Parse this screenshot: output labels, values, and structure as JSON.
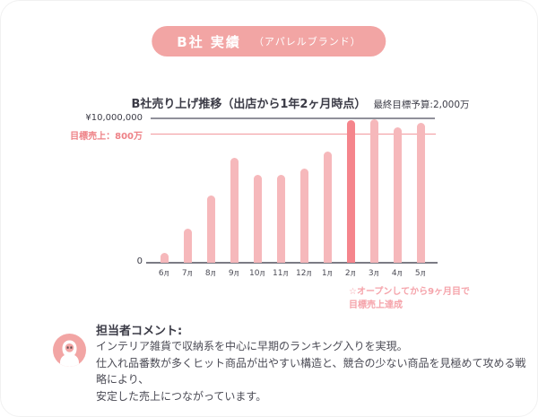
{
  "header": {
    "badge_main": "B社 実績",
    "badge_sub": "（アパレルブランド）"
  },
  "chart_data": {
    "type": "bar",
    "title": "B社売り上げ推移（出店から1年2ヶ月時点）",
    "subtitle": "最終目標予算:2,000万",
    "y_max_label": "¥10,000,000",
    "zero_label": "0",
    "target_label": "目標売上：800万",
    "target_value_man": 800,
    "unit": "万円",
    "ylim_man": [
      0,
      1000
    ],
    "categories": [
      "6月",
      "7月",
      "8月",
      "9月",
      "10月",
      "11月",
      "12月",
      "1月",
      "2月",
      "3月",
      "4月",
      "5月"
    ],
    "values_man": [
      70,
      235,
      465,
      725,
      610,
      610,
      655,
      770,
      985,
      995,
      940,
      970
    ],
    "highlight_index": 8,
    "legend": "none",
    "grid": "top-line-and-target-line-only",
    "annotation": [
      "☆オープンしてから9ヶ月目で",
      "目標売上達成"
    ]
  },
  "comment": {
    "heading": "担当者コメント:",
    "lines": [
      "インテリア雑貨で収納系を中心に早期のランキング入りを実現。",
      "仕入れ品番数が多くヒット商品が出やすい構造と、競合の少ない商品を見極めて攻める戦略により、",
      "安定した売上につながっています。"
    ]
  },
  "icons": {
    "avatar": "hooded-person-icon"
  },
  "colors": {
    "badge_bg": "#F2A5A4",
    "badge_text": "#FFFFFF",
    "bar_light": "#F6B8BB",
    "bar_highlight": "#F5858C",
    "target_line": "#F2999E",
    "target_text": "#EE8287",
    "annotation_text": "#F5A3AA",
    "grid_gray": "#90909A",
    "axis_gray": "#7B7B84",
    "text_dark": "#3B3B46",
    "comment_text": "#4B4B55"
  }
}
